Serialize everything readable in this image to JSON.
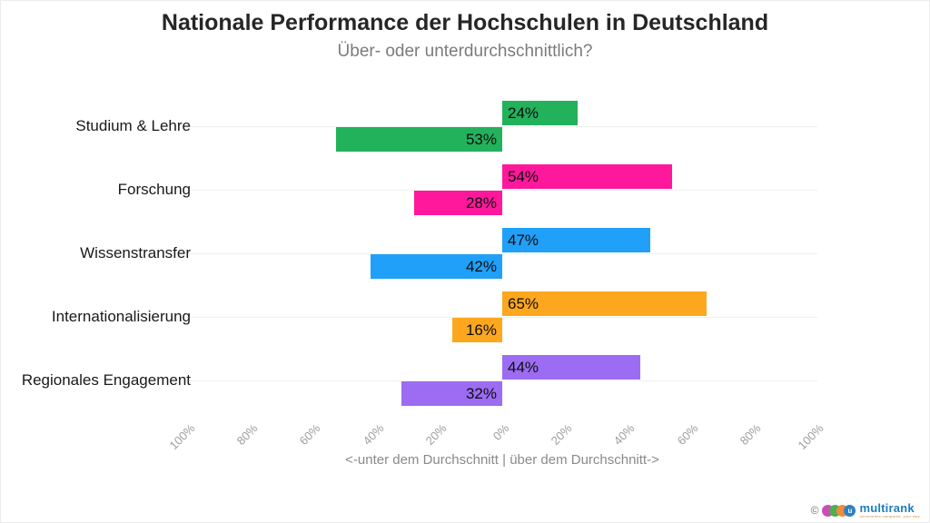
{
  "header": {
    "title": "Nationale Performance der Hochschulen in Deutschland",
    "subtitle": "Über- oder unterdurchschnittlich?"
  },
  "chart_data": {
    "type": "bar",
    "orientation": "diverging-horizontal",
    "title": "Nationale Performance der Hochschulen in Deutschland",
    "subtitle": "Über- oder unterdurchschnittlich?",
    "categories": [
      "Studium & Lehre",
      "Forschung",
      "Wissenstransfer",
      "Internationalisierung",
      "Regionales Engagement"
    ],
    "series": [
      {
        "name": "über dem Durchschnitt",
        "values": [
          24,
          54,
          47,
          65,
          44
        ]
      },
      {
        "name": "unter dem Durchschnitt",
        "values": [
          53,
          28,
          42,
          16,
          32
        ]
      }
    ],
    "value_suffix": "%",
    "colors": [
      "#22b25c",
      "#ff189c",
      "#20a0f8",
      "#fda71e",
      "#9c6cf3"
    ],
    "x_ticks": [
      "100%",
      "80%",
      "60%",
      "40%",
      "20%",
      "0%",
      "20%",
      "40%",
      "60%",
      "80%",
      "100%"
    ],
    "x_tick_values": [
      -100,
      -80,
      -60,
      -40,
      -20,
      0,
      20,
      40,
      60,
      80,
      100
    ],
    "xlim": [
      -100,
      100
    ],
    "xlabel": "<-unter dem Durchschnitt | über dem Durchschnitt->",
    "grid": "light horizontal line per category",
    "legend": "none",
    "bar_label_color": "#0d0d0d",
    "grid_color": "#f0f0f0",
    "tick_label_color": "#9e9e9e"
  },
  "logo": {
    "copyright": "©",
    "circle_letter": "u",
    "brand": "multirank",
    "tagline": "universities compared. your way.",
    "dot_colors": [
      "#c94fb6",
      "#4daf4e",
      "#f08c3a",
      "#2e7fc3"
    ],
    "brand_color": "#1f7ec2",
    "tagline_color": "#e08a3c"
  }
}
